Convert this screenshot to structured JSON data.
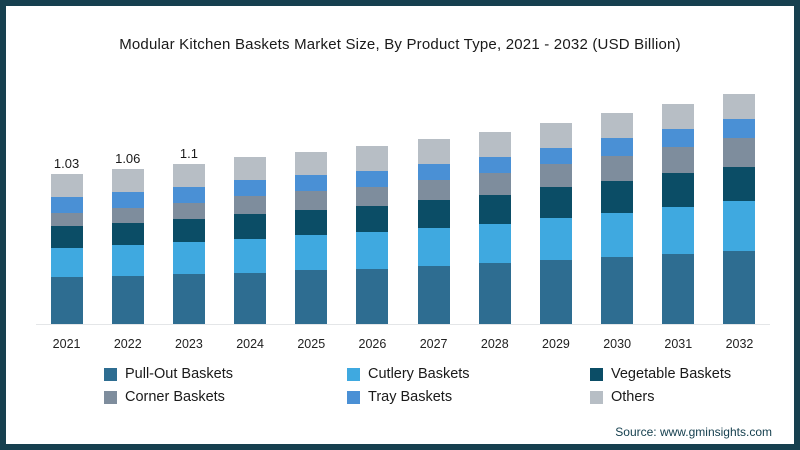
{
  "title": "Modular Kitchen Baskets Market Size, By Product Type, 2021 - 2032 (USD Billion)",
  "source": "Source: www.gminsights.com",
  "frame": {
    "border_color": "#16404f",
    "background_color": "#ffffff"
  },
  "chart_data": {
    "type": "bar",
    "stacked": true,
    "title": "Modular Kitchen Baskets Market Size, By Product Type, 2021 - 2032 (USD Billion)",
    "units": "USD Billion",
    "xlabel": "",
    "ylabel": "",
    "legend_position": "bottom",
    "grid": "baseline-only",
    "categories": [
      "2021",
      "2022",
      "2023",
      "2024",
      "2025",
      "2026",
      "2027",
      "2028",
      "2029",
      "2030",
      "2031",
      "2032"
    ],
    "series": [
      {
        "name": "Pull-Out Baskets",
        "color": "#2e6d91",
        "values": [
          0.32,
          0.33,
          0.34,
          0.35,
          0.37,
          0.38,
          0.4,
          0.42,
          0.44,
          0.46,
          0.48,
          0.5
        ]
      },
      {
        "name": "Cutlery Baskets",
        "color": "#3fa9e0",
        "values": [
          0.2,
          0.21,
          0.22,
          0.23,
          0.24,
          0.25,
          0.26,
          0.27,
          0.29,
          0.3,
          0.32,
          0.34
        ]
      },
      {
        "name": "Vegetable Baskets",
        "color": "#0b4d66",
        "values": [
          0.15,
          0.15,
          0.16,
          0.17,
          0.17,
          0.18,
          0.19,
          0.2,
          0.21,
          0.22,
          0.23,
          0.23
        ]
      },
      {
        "name": "Corner Baskets",
        "color": "#7e8d9d",
        "values": [
          0.09,
          0.1,
          0.11,
          0.12,
          0.13,
          0.13,
          0.14,
          0.15,
          0.16,
          0.17,
          0.18,
          0.2
        ]
      },
      {
        "name": "Tray Baskets",
        "color": "#4a90d5",
        "values": [
          0.11,
          0.11,
          0.11,
          0.11,
          0.11,
          0.11,
          0.11,
          0.11,
          0.11,
          0.12,
          0.12,
          0.13
        ]
      },
      {
        "name": "Others",
        "color": "#b7bec5",
        "values": [
          0.16,
          0.16,
          0.16,
          0.16,
          0.16,
          0.17,
          0.17,
          0.17,
          0.17,
          0.17,
          0.17,
          0.17
        ]
      }
    ],
    "totals": [
      1.03,
      1.06,
      1.1,
      1.14,
      1.18,
      1.22,
      1.27,
      1.32,
      1.38,
      1.44,
      1.5,
      1.57
    ],
    "value_labels": [
      "1.03",
      "1.06",
      "1.1",
      "",
      "",
      "",
      "",
      "",
      "",
      "",
      "",
      ""
    ]
  }
}
